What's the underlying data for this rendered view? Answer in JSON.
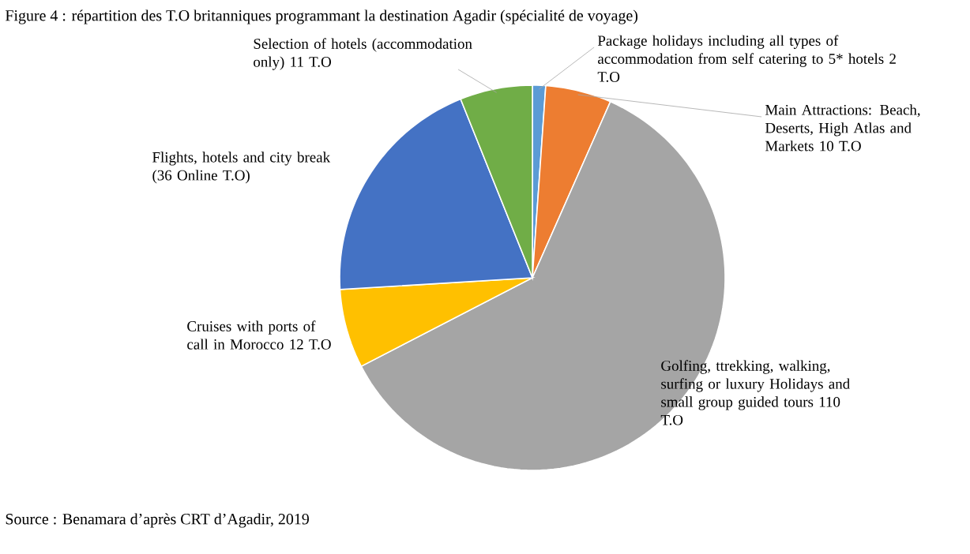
{
  "chart_data": {
    "type": "pie",
    "title": "Figure 4 : répartition des T.O britanniques programmant la destination Agadir (spécialité de voyage)",
    "categories": [
      "Package holidays including all types of accommodation from self catering to 5* hotels 2 T.O",
      "Main Attractions: Beach, Deserts, High Atlas and Markets 10 T.O",
      "Golfing, ttrekking, walking, surfing or luxury Holidays and small group guided tours 110 T.O",
      "Cruises with ports of call in Morocco 12 T.O",
      "Flights, hotels and city break (36 Online T.O)",
      "Selection of hotels (accommodation only) 11 T.O"
    ],
    "values": [
      2,
      10,
      110,
      12,
      36,
      11
    ],
    "colors": [
      "#5b9bd5",
      "#ed7d31",
      "#a5a5a5",
      "#ffc000",
      "#4472c4",
      "#70ad47"
    ],
    "annotations": [
      "Source : Benamara d’après CRT d’Agadir, 2019"
    ]
  }
}
